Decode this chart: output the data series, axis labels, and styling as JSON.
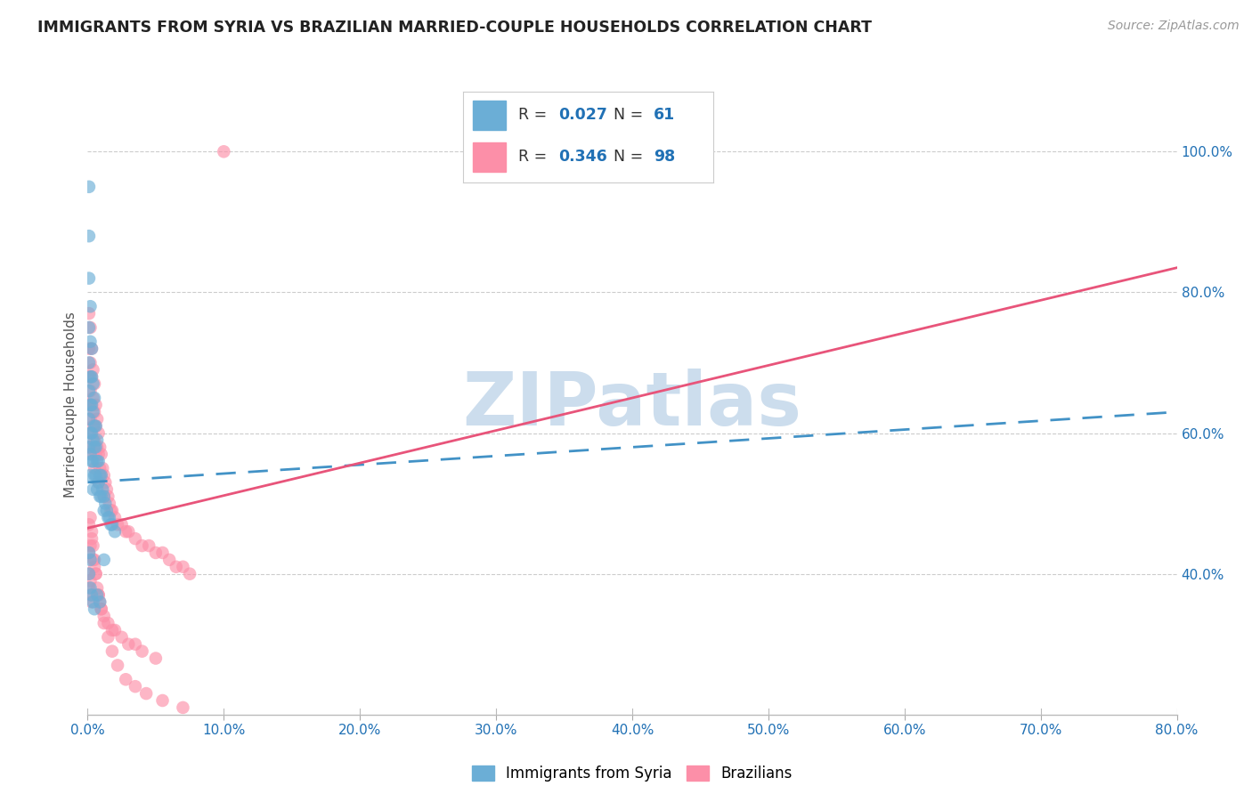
{
  "title": "IMMIGRANTS FROM SYRIA VS BRAZILIAN MARRIED-COUPLE HOUSEHOLDS CORRELATION CHART",
  "source": "Source: ZipAtlas.com",
  "ylabel": "Married-couple Households",
  "xmin": 0.0,
  "xmax": 0.8,
  "ymin": 0.2,
  "ymax": 1.08,
  "xtick_labels": [
    "0.0%",
    "10.0%",
    "20.0%",
    "30.0%",
    "40.0%",
    "50.0%",
    "60.0%",
    "70.0%",
    "80.0%"
  ],
  "xtick_vals": [
    0.0,
    0.1,
    0.2,
    0.3,
    0.4,
    0.5,
    0.6,
    0.7,
    0.8
  ],
  "ytick_labels": [
    "40.0%",
    "60.0%",
    "80.0%",
    "100.0%"
  ],
  "ytick_vals": [
    0.4,
    0.6,
    0.8,
    1.0
  ],
  "color_blue": "#6baed6",
  "color_pink": "#fc8fa8",
  "color_blue_line": "#4292c6",
  "color_pink_line": "#e8547a",
  "color_text_blue": "#2171b5",
  "watermark": "ZIPatlas",
  "watermark_color": "#ccdded",
  "syria_line_x0": 0.0,
  "syria_line_y0": 0.53,
  "syria_line_x1": 0.8,
  "syria_line_y1": 0.63,
  "brazil_line_x0": 0.0,
  "brazil_line_y0": 0.465,
  "brazil_line_x1": 0.8,
  "brazil_line_y1": 0.835,
  "syria_x": [
    0.001,
    0.001,
    0.001,
    0.001,
    0.001,
    0.001,
    0.001,
    0.002,
    0.002,
    0.002,
    0.002,
    0.002,
    0.002,
    0.002,
    0.003,
    0.003,
    0.003,
    0.003,
    0.003,
    0.004,
    0.004,
    0.004,
    0.004,
    0.004,
    0.005,
    0.005,
    0.005,
    0.005,
    0.006,
    0.006,
    0.006,
    0.007,
    0.007,
    0.007,
    0.008,
    0.008,
    0.009,
    0.009,
    0.01,
    0.01,
    0.011,
    0.012,
    0.012,
    0.013,
    0.014,
    0.015,
    0.016,
    0.017,
    0.018,
    0.02,
    0.001,
    0.001,
    0.002,
    0.002,
    0.003,
    0.004,
    0.005,
    0.007,
    0.009,
    0.012,
    0.001
  ],
  "syria_y": [
    0.88,
    0.82,
    0.75,
    0.7,
    0.66,
    0.62,
    0.58,
    0.78,
    0.73,
    0.68,
    0.64,
    0.6,
    0.57,
    0.54,
    0.72,
    0.68,
    0.64,
    0.6,
    0.56,
    0.67,
    0.63,
    0.59,
    0.56,
    0.52,
    0.65,
    0.61,
    0.58,
    0.54,
    0.61,
    0.58,
    0.54,
    0.59,
    0.56,
    0.52,
    0.56,
    0.53,
    0.54,
    0.51,
    0.54,
    0.51,
    0.52,
    0.51,
    0.49,
    0.5,
    0.49,
    0.48,
    0.48,
    0.47,
    0.47,
    0.46,
    0.43,
    0.4,
    0.42,
    0.38,
    0.37,
    0.36,
    0.35,
    0.37,
    0.36,
    0.42,
    0.95
  ],
  "brazil_x": [
    0.001,
    0.001,
    0.001,
    0.001,
    0.002,
    0.002,
    0.002,
    0.002,
    0.002,
    0.003,
    0.003,
    0.003,
    0.003,
    0.004,
    0.004,
    0.004,
    0.004,
    0.005,
    0.005,
    0.005,
    0.005,
    0.006,
    0.006,
    0.006,
    0.007,
    0.007,
    0.008,
    0.008,
    0.008,
    0.009,
    0.009,
    0.01,
    0.01,
    0.011,
    0.012,
    0.012,
    0.013,
    0.014,
    0.015,
    0.016,
    0.017,
    0.018,
    0.02,
    0.022,
    0.025,
    0.028,
    0.03,
    0.035,
    0.04,
    0.045,
    0.05,
    0.055,
    0.06,
    0.065,
    0.07,
    0.075,
    0.001,
    0.001,
    0.002,
    0.002,
    0.003,
    0.003,
    0.004,
    0.005,
    0.006,
    0.007,
    0.008,
    0.009,
    0.01,
    0.012,
    0.015,
    0.018,
    0.02,
    0.025,
    0.03,
    0.035,
    0.04,
    0.05,
    0.1,
    0.001,
    0.001,
    0.002,
    0.002,
    0.003,
    0.004,
    0.005,
    0.006,
    0.008,
    0.01,
    0.012,
    0.015,
    0.018,
    0.022,
    0.028,
    0.035,
    0.043,
    0.055,
    0.07
  ],
  "brazil_y": [
    0.77,
    0.72,
    0.68,
    0.64,
    0.75,
    0.7,
    0.66,
    0.62,
    0.58,
    0.72,
    0.68,
    0.64,
    0.6,
    0.69,
    0.65,
    0.61,
    0.57,
    0.67,
    0.63,
    0.59,
    0.55,
    0.64,
    0.61,
    0.57,
    0.62,
    0.58,
    0.6,
    0.57,
    0.53,
    0.58,
    0.55,
    0.57,
    0.54,
    0.55,
    0.54,
    0.51,
    0.53,
    0.52,
    0.51,
    0.5,
    0.49,
    0.49,
    0.48,
    0.47,
    0.47,
    0.46,
    0.46,
    0.45,
    0.44,
    0.44,
    0.43,
    0.43,
    0.42,
    0.41,
    0.41,
    0.4,
    0.43,
    0.38,
    0.44,
    0.37,
    0.45,
    0.36,
    0.42,
    0.41,
    0.4,
    0.38,
    0.37,
    0.36,
    0.35,
    0.34,
    0.33,
    0.32,
    0.32,
    0.31,
    0.3,
    0.3,
    0.29,
    0.28,
    1.0,
    0.47,
    0.4,
    0.48,
    0.39,
    0.46,
    0.44,
    0.42,
    0.4,
    0.37,
    0.35,
    0.33,
    0.31,
    0.29,
    0.27,
    0.25,
    0.24,
    0.23,
    0.22,
    0.21
  ]
}
